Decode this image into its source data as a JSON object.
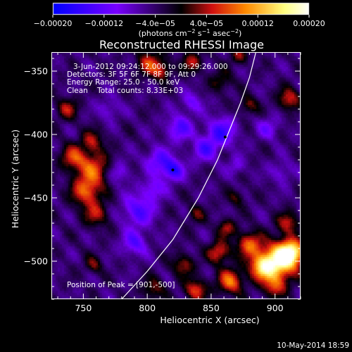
{
  "chart_data": {
    "type": "heatmap",
    "title": "Reconstructed RHESSI Image",
    "xlabel": "Heliocentric X (arcsec)",
    "ylabel": "Heliocentric Y (arcsec)",
    "xlim": [
      725,
      920
    ],
    "ylim": [
      -530,
      -335
    ],
    "x_ticks": [
      {
        "value": 750,
        "label": "750"
      },
      {
        "value": 800,
        "label": "800"
      },
      {
        "value": 850,
        "label": "850"
      },
      {
        "value": 900,
        "label": "900"
      }
    ],
    "y_ticks": [
      {
        "value": -350,
        "label": "−350"
      },
      {
        "value": -400,
        "label": "−400"
      },
      {
        "value": -450,
        "label": "−450"
      },
      {
        "value": -500,
        "label": "−500"
      }
    ],
    "colorbar": {
      "min": -0.0002,
      "max": 0.0002,
      "ticks": [
        {
          "value": -0.0002,
          "label": "−0.00020"
        },
        {
          "value": -0.00012,
          "label": "−0.00012"
        },
        {
          "value": -4e-05,
          "label": "−4.0e−05"
        },
        {
          "value": 4e-05,
          "label": "4.0e−05"
        },
        {
          "value": 0.00012,
          "label": "0.00012"
        },
        {
          "value": 0.0002,
          "label": "0.00020"
        }
      ],
      "units_label": "(photons cm",
      "units_exp1": "−2",
      "units_mid": " s",
      "units_exp2": "−1",
      "units_mid2": " asec",
      "units_exp3": "−2",
      "units_end": ")",
      "colors": [
        "#0000ff",
        "#7a00ff",
        "#000000",
        "#d01010",
        "#ff8a00",
        "#ffff80",
        "#ffffff"
      ]
    },
    "info_lines": [
      "3-Jun-2012 09:24:12.000 to 09:29:26.000",
      "Detectors: 3F 5F 6F 7F 8F 9F, Att 0",
      "Energy Range: 25.0 - 50.0 keV",
      "Clean    Total counts: 8.33E+03"
    ],
    "peak_label": "Position of Peak = [901,-500]",
    "peak_position": [
      901,
      -500
    ],
    "minimum_markers": [
      [
        820,
        -428
      ],
      [
        861,
        -402
      ]
    ],
    "limb_curve": [
      [
        780,
        -530
      ],
      [
        800,
        -508
      ],
      [
        820,
        -483
      ],
      [
        840,
        -450
      ],
      [
        855,
        -420
      ],
      [
        865,
        -395
      ],
      [
        873,
        -375
      ],
      [
        880,
        -355
      ],
      [
        885,
        -335
      ]
    ],
    "blobs": [
      {
        "x": 758,
        "y": -427,
        "v": 0.00011,
        "s": 9
      },
      {
        "x": 752,
        "y": -445,
        "v": 0.00012,
        "s": 8
      },
      {
        "x": 742,
        "y": -418,
        "v": 0.0001,
        "s": 7
      },
      {
        "x": 757,
        "y": -405,
        "v": 8e-05,
        "s": 6
      },
      {
        "x": 760,
        "y": -463,
        "v": 8e-05,
        "s": 7
      },
      {
        "x": 802,
        "y": -344,
        "v": 0.0001,
        "s": 7
      },
      {
        "x": 835,
        "y": -343,
        "v": 8e-05,
        "s": 6
      },
      {
        "x": 812,
        "y": -350,
        "v": 8e-05,
        "s": 5
      },
      {
        "x": 858,
        "y": -358,
        "v": 6e-05,
        "s": 6
      },
      {
        "x": 737,
        "y": -380,
        "v": 8e-05,
        "s": 6
      },
      {
        "x": 911,
        "y": -372,
        "v": 0.0001,
        "s": 6
      },
      {
        "x": 872,
        "y": -338,
        "v": 7e-05,
        "s": 5
      },
      {
        "x": 879,
        "y": -377,
        "v": 7e-05,
        "s": 5
      },
      {
        "x": 903,
        "y": -500,
        "v": 0.0002,
        "s": 10
      },
      {
        "x": 913,
        "y": -493,
        "v": 0.00018,
        "s": 7
      },
      {
        "x": 890,
        "y": -505,
        "v": 0.00015,
        "s": 7
      },
      {
        "x": 880,
        "y": -487,
        "v": 0.00012,
        "s": 7
      },
      {
        "x": 910,
        "y": -470,
        "v": 9e-05,
        "s": 6
      },
      {
        "x": 856,
        "y": -493,
        "v": 0.00011,
        "s": 6
      },
      {
        "x": 865,
        "y": -516,
        "v": 0.00013,
        "s": 7
      },
      {
        "x": 900,
        "y": -520,
        "v": 0.0001,
        "s": 6
      },
      {
        "x": 838,
        "y": -523,
        "v": 0.00011,
        "s": 6
      },
      {
        "x": 828,
        "y": -503,
        "v": 8e-05,
        "s": 6
      },
      {
        "x": 805,
        "y": -522,
        "v": 7e-05,
        "s": 6
      },
      {
        "x": 862,
        "y": -474,
        "v": 8e-05,
        "s": 5
      },
      {
        "x": 838,
        "y": -463,
        "v": 6e-05,
        "s": 5
      },
      {
        "x": 758,
        "y": -503,
        "v": 6e-05,
        "s": 5
      },
      {
        "x": 870,
        "y": -450,
        "v": 5e-05,
        "s": 5
      },
      {
        "x": 845,
        "y": -412,
        "v": -8e-05,
        "s": 7
      },
      {
        "x": 858,
        "y": -398,
        "v": -0.0001,
        "s": 8
      },
      {
        "x": 825,
        "y": -395,
        "v": -9e-05,
        "s": 7
      },
      {
        "x": 808,
        "y": -420,
        "v": -8e-05,
        "s": 7
      },
      {
        "x": 820,
        "y": -428,
        "v": -0.00012,
        "s": 6
      },
      {
        "x": 793,
        "y": -460,
        "v": -9e-05,
        "s": 9
      },
      {
        "x": 790,
        "y": -486,
        "v": -8e-05,
        "s": 7
      },
      {
        "x": 805,
        "y": -443,
        "v": -7e-05,
        "s": 6
      },
      {
        "x": 778,
        "y": -430,
        "v": -6e-05,
        "s": 6
      },
      {
        "x": 895,
        "y": -395,
        "v": -6e-05,
        "s": 6
      },
      {
        "x": 905,
        "y": -430,
        "v": -5e-05,
        "s": 6
      },
      {
        "x": 835,
        "y": -375,
        "v": -6e-05,
        "s": 6
      },
      {
        "x": 770,
        "y": -380,
        "v": -5e-05,
        "s": 6
      },
      {
        "x": 870,
        "y": -425,
        "v": -5e-05,
        "s": 5
      }
    ]
  },
  "footer": {
    "timestamp": "10-May-2014 18:59"
  }
}
